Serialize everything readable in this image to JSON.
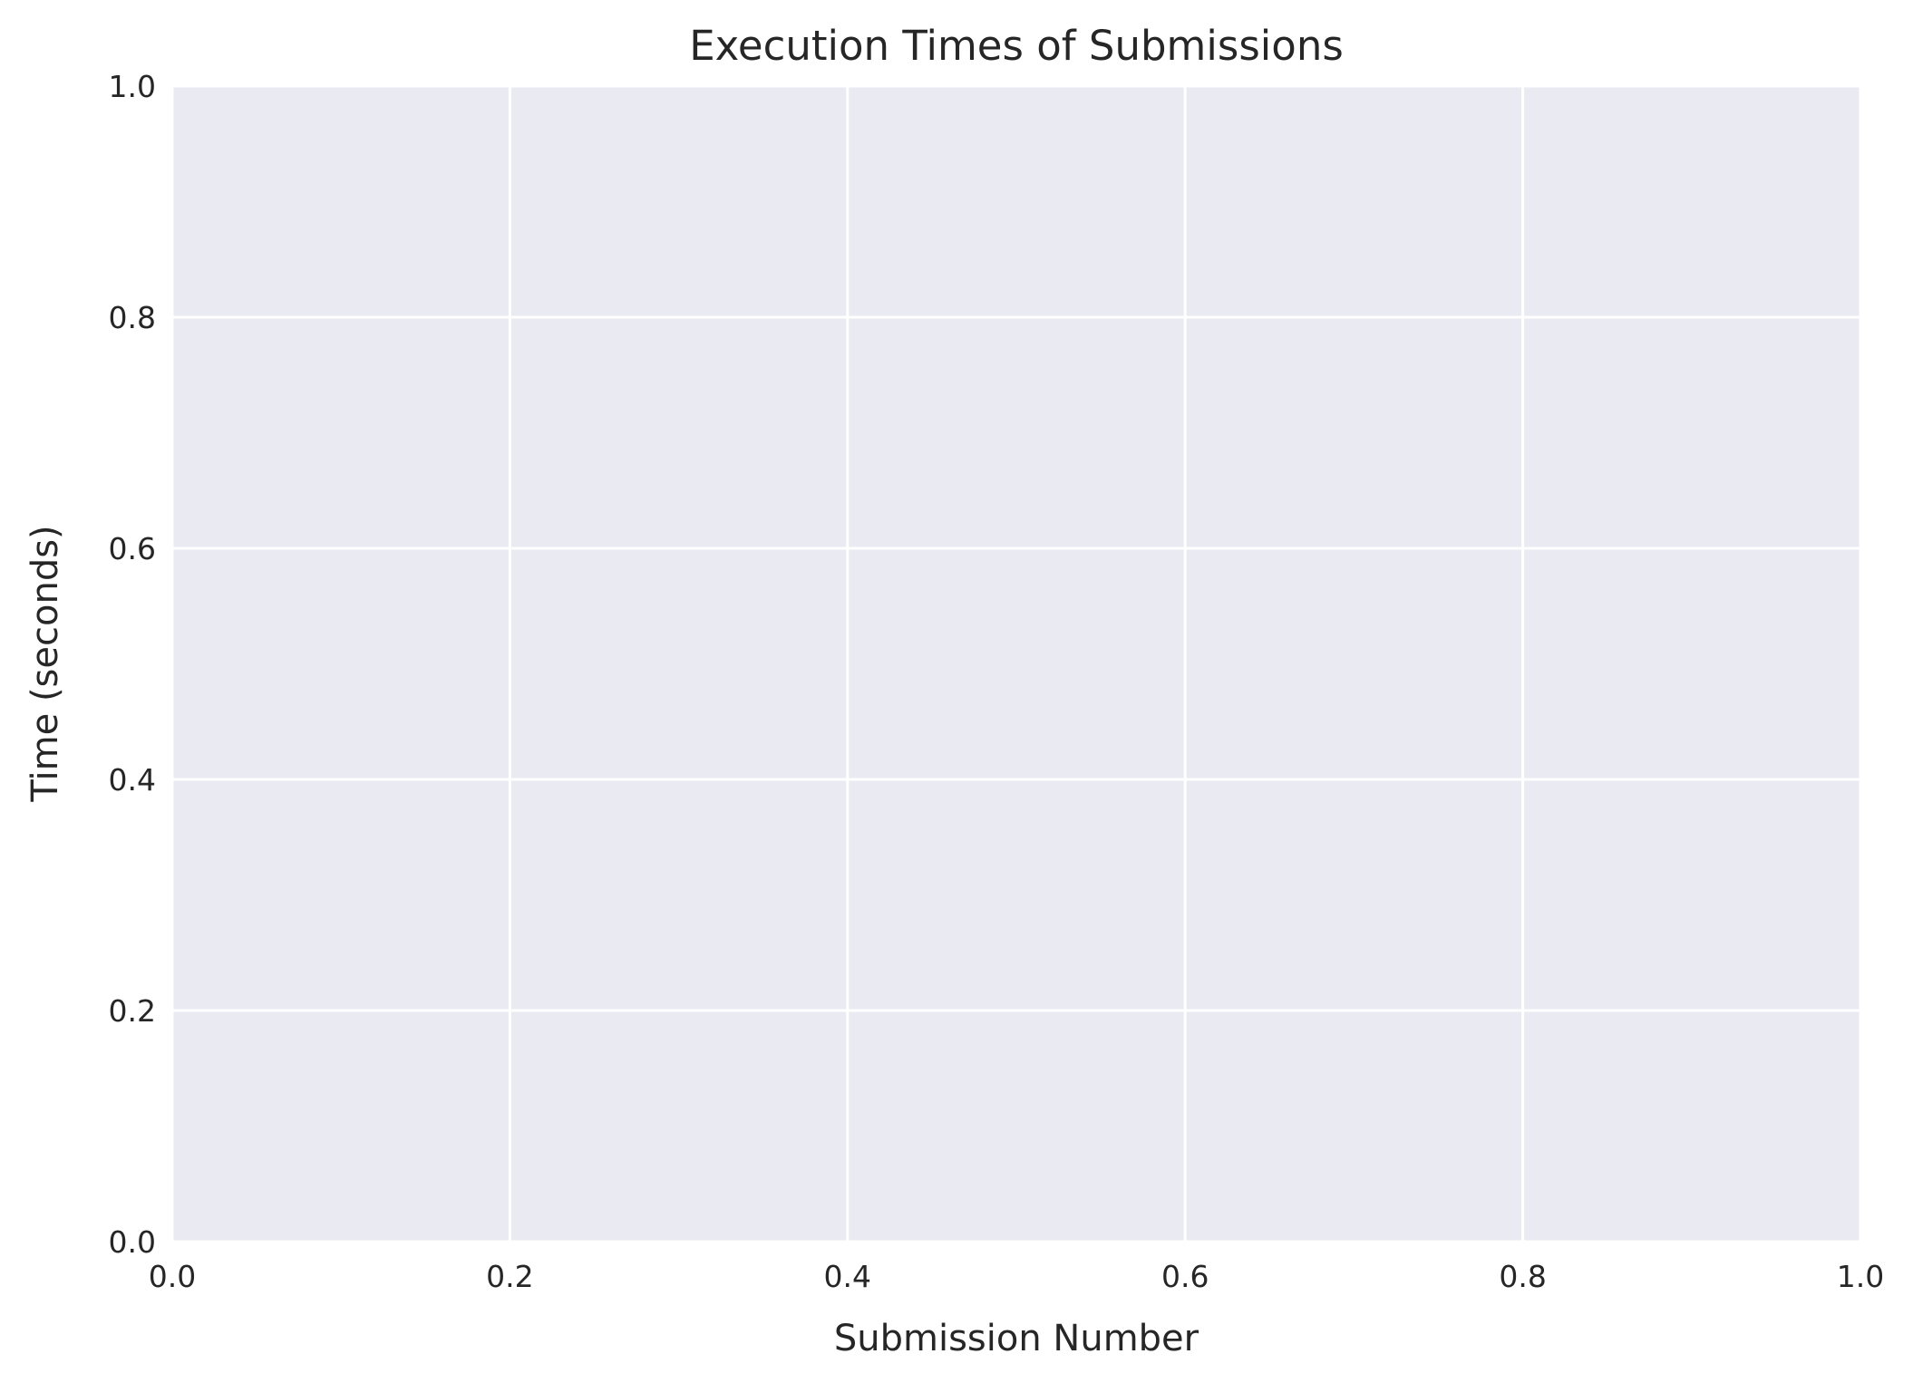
{
  "chart_data": {
    "type": "line",
    "title": "Execution Times of Submissions",
    "xlabel": "Submission Number",
    "ylabel": "Time (seconds)",
    "xlim": [
      0.0,
      1.0
    ],
    "ylim": [
      0.0,
      1.0
    ],
    "x_ticks": [
      "0.0",
      "0.2",
      "0.4",
      "0.6",
      "0.8",
      "1.0"
    ],
    "y_ticks": [
      "0.0",
      "0.2",
      "0.4",
      "0.6",
      "0.8",
      "1.0"
    ],
    "grid": true,
    "series": [],
    "colors": {
      "plot_background": "#eaeaf2",
      "grid": "#ffffff",
      "text": "#262626"
    }
  }
}
